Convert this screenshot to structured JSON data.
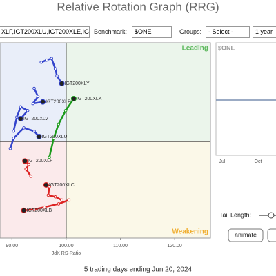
{
  "title": "Relative Rotation Graph (RRG)",
  "toolbar": {
    "symbols": "XLF,IGT200XLU,IGT200XLE,IG",
    "benchmark_label": "Benchmark:",
    "benchmark": "$ONE",
    "groups_label": "Groups:",
    "groups": "- Select -",
    "period": "1 year"
  },
  "chart_data": {
    "type": "line",
    "x_label": "JdK RS-Ratio",
    "caption": "5 trading days ending Jun 20, 2024",
    "quadrants": {
      "leading": "Leading",
      "weakening": "Weakening"
    },
    "center": [
      100,
      100
    ],
    "xlim": [
      87.8,
      126.6
    ],
    "ylim": [
      82.2,
      118.2
    ],
    "xticks": [
      {
        "value": 90,
        "label": "90.00"
      },
      {
        "value": 100,
        "label": "100.00"
      },
      {
        "value": 110,
        "label": "110.00"
      },
      {
        "value": 120,
        "label": "120.00"
      }
    ],
    "series": [
      {
        "name": "IGT200XLY",
        "color": "#3344cc",
        "x": [
          95.4,
          96.4,
          97.3,
          98.0,
          98.3,
          99.2
        ],
        "values": [
          114.6,
          115.0,
          115.3,
          113.4,
          112.1,
          110.7
        ]
      },
      {
        "name": "IGT200XLK",
        "color": "#1a9a1a",
        "x": [
          96.9,
          97.7,
          98.6,
          99.9,
          101.4
        ],
        "values": [
          97.1,
          100.6,
          103.2,
          105.7,
          107.9
        ]
      },
      {
        "name": "IGT200XLP",
        "color": "#3344cc",
        "x": [
          94.1,
          94.8,
          93.9,
          95.7
        ],
        "values": [
          109.8,
          108.3,
          107.0,
          107.3
        ]
      },
      {
        "name": "IGT200XLV",
        "color": "#3344cc",
        "x": [
          90.3,
          90.9,
          91.6,
          92.9,
          91.6
        ],
        "values": [
          101.9,
          104.5,
          106.4,
          105.7,
          104.2
        ]
      },
      {
        "name": "IGT200XLU",
        "color": "#3344cc",
        "x": [
          89.7,
          90.3,
          92.2,
          94.1,
          95.0
        ],
        "values": [
          98.7,
          100.6,
          102.5,
          101.9,
          100.9
        ]
      },
      {
        "name": "IGT200XLF",
        "color": "#dd2222",
        "x": [
          93.5,
          92.6,
          93.1,
          92.4
        ],
        "values": [
          93.6,
          94.9,
          95.8,
          96.4
        ]
      },
      {
        "name": "IGT200XLC",
        "color": "#dd2222",
        "x": [
          99.2,
          98.0,
          96.7,
          96.9,
          96.3
        ],
        "values": [
          89.2,
          89.8,
          90.1,
          91.7,
          92.0
        ]
      },
      {
        "name": "IGT200XLB",
        "color": "#dd2222",
        "x": [
          100.5,
          98.6,
          96.0,
          94.1,
          92.2
        ],
        "values": [
          89.2,
          88.5,
          87.9,
          87.5,
          87.3
        ]
      }
    ]
  },
  "side_panel": {
    "title": "$ONE",
    "months": [
      "Jul",
      "Oct"
    ]
  },
  "controls": {
    "tail_length": "Tail Length:",
    "animate": "animate"
  }
}
